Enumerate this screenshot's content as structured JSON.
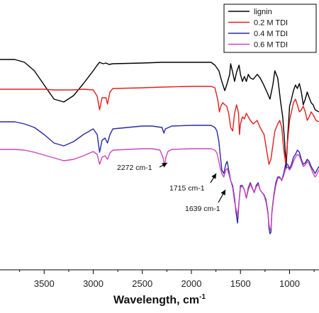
{
  "chart_data": {
    "type": "line",
    "xlabel": "Wavelength, cm",
    "xlabel_superscript": "-1",
    "x_reversed": true,
    "xlim": [
      3950,
      700
    ],
    "x_ticks": [
      3500,
      3000,
      2500,
      2000,
      1500,
      1000
    ],
    "y_axis_shown": false,
    "grid": false,
    "legend_position": "top-right",
    "series": [
      {
        "name": "lignin",
        "color": "#000000",
        "points": [
          [
            3950,
            84
          ],
          [
            3800,
            84
          ],
          [
            3700,
            88
          ],
          [
            3600,
            100
          ],
          [
            3500,
            120
          ],
          [
            3400,
            140
          ],
          [
            3300,
            144
          ],
          [
            3200,
            135
          ],
          [
            3100,
            118
          ],
          [
            3000,
            100
          ],
          [
            2960,
            92
          ],
          [
            2935,
            88
          ],
          [
            2900,
            90
          ],
          [
            2870,
            89
          ],
          [
            2840,
            91
          ],
          [
            2800,
            90
          ],
          [
            2500,
            89
          ],
          [
            2300,
            88
          ],
          [
            2000,
            88
          ],
          [
            1800,
            88
          ],
          [
            1760,
            92
          ],
          [
            1720,
            100
          ],
          [
            1690,
            115
          ],
          [
            1660,
            128
          ],
          [
            1640,
            120
          ],
          [
            1610,
            105
          ],
          [
            1600,
            90
          ],
          [
            1580,
            102
          ],
          [
            1560,
            115
          ],
          [
            1540,
            102
          ],
          [
            1515,
            92
          ],
          [
            1500,
            105
          ],
          [
            1480,
            115
          ],
          [
            1460,
            108
          ],
          [
            1440,
            115
          ],
          [
            1420,
            105
          ],
          [
            1400,
            110
          ],
          [
            1370,
            112
          ],
          [
            1330,
            105
          ],
          [
            1300,
            110
          ],
          [
            1270,
            118
          ],
          [
            1230,
            130
          ],
          [
            1200,
            140
          ],
          [
            1170,
            120
          ],
          [
            1150,
            100
          ],
          [
            1120,
            110
          ],
          [
            1090,
            145
          ],
          [
            1070,
            165
          ],
          [
            1050,
            200
          ],
          [
            1035,
            238
          ],
          [
            1020,
            195
          ],
          [
            1000,
            150
          ],
          [
            980,
            140
          ],
          [
            960,
            128
          ],
          [
            940,
            120
          ],
          [
            920,
            125
          ],
          [
            900,
            118
          ],
          [
            880,
            130
          ],
          [
            860,
            148
          ],
          [
            840,
            140
          ],
          [
            820,
            130
          ],
          [
            800,
            138
          ],
          [
            780,
            145
          ],
          [
            760,
            148
          ],
          [
            740,
            155
          ],
          [
            700,
            158
          ]
        ]
      },
      {
        "name": "0.2 M TDI",
        "color": "#e02020",
        "points": [
          [
            3950,
            126
          ],
          [
            3800,
            126
          ],
          [
            3700,
            126
          ],
          [
            3600,
            126
          ],
          [
            3500,
            126
          ],
          [
            3400,
            127
          ],
          [
            3300,
            127
          ],
          [
            3200,
            127
          ],
          [
            3100,
            126
          ],
          [
            3000,
            127
          ],
          [
            2960,
            136
          ],
          [
            2935,
            155
          ],
          [
            2910,
            138
          ],
          [
            2870,
            138
          ],
          [
            2855,
            147
          ],
          [
            2830,
            130
          ],
          [
            2800,
            125
          ],
          [
            2500,
            124
          ],
          [
            2300,
            123
          ],
          [
            2000,
            122
          ],
          [
            1800,
            122
          ],
          [
            1760,
            124
          ],
          [
            1730,
            142
          ],
          [
            1715,
            158
          ],
          [
            1700,
            150
          ],
          [
            1680,
            145
          ],
          [
            1660,
            148
          ],
          [
            1640,
            150
          ],
          [
            1620,
            160
          ],
          [
            1600,
            180
          ],
          [
            1580,
            185
          ],
          [
            1560,
            160
          ],
          [
            1540,
            148
          ],
          [
            1520,
            160
          ],
          [
            1510,
            190
          ],
          [
            1500,
            175
          ],
          [
            1480,
            165
          ],
          [
            1460,
            168
          ],
          [
            1440,
            160
          ],
          [
            1420,
            165
          ],
          [
            1400,
            170
          ],
          [
            1370,
            175
          ],
          [
            1330,
            170
          ],
          [
            1300,
            180
          ],
          [
            1260,
            190
          ],
          [
            1230,
            215
          ],
          [
            1210,
            232
          ],
          [
            1190,
            225
          ],
          [
            1170,
            205
          ],
          [
            1150,
            185
          ],
          [
            1120,
            175
          ],
          [
            1100,
            170
          ],
          [
            1080,
            180
          ],
          [
            1060,
            210
          ],
          [
            1040,
            230
          ],
          [
            1020,
            200
          ],
          [
            1000,
            170
          ],
          [
            980,
            158
          ],
          [
            960,
            145
          ],
          [
            940,
            140
          ],
          [
            920,
            148
          ],
          [
            900,
            158
          ],
          [
            880,
            155
          ],
          [
            860,
            150
          ],
          [
            840,
            158
          ],
          [
            820,
            170
          ],
          [
            800,
            165
          ],
          [
            780,
            158
          ],
          [
            760,
            162
          ],
          [
            730,
            170
          ],
          [
            700,
            172
          ]
        ]
      },
      {
        "name": "0.4 M TDI",
        "color": "#2a2aa0",
        "points": [
          [
            3950,
            172
          ],
          [
            3800,
            172
          ],
          [
            3700,
            175
          ],
          [
            3600,
            180
          ],
          [
            3500,
            190
          ],
          [
            3400,
            202
          ],
          [
            3300,
            206
          ],
          [
            3200,
            200
          ],
          [
            3100,
            190
          ],
          [
            3000,
            182
          ],
          [
            2960,
            190
          ],
          [
            2935,
            215
          ],
          [
            2910,
            198
          ],
          [
            2880,
            195
          ],
          [
            2855,
            202
          ],
          [
            2830,
            190
          ],
          [
            2800,
            182
          ],
          [
            2500,
            178
          ],
          [
            2400,
            178
          ],
          [
            2300,
            180
          ],
          [
            2280,
            188
          ],
          [
            2265,
            182
          ],
          [
            2200,
            178
          ],
          [
            2000,
            177
          ],
          [
            1800,
            177
          ],
          [
            1760,
            180
          ],
          [
            1740,
            185
          ],
          [
            1720,
            200
          ],
          [
            1705,
            220
          ],
          [
            1690,
            240
          ],
          [
            1670,
            245
          ],
          [
            1650,
            232
          ],
          [
            1635,
            228
          ],
          [
            1620,
            240
          ],
          [
            1600,
            255
          ],
          [
            1580,
            262
          ],
          [
            1560,
            280
          ],
          [
            1545,
            300
          ],
          [
            1530,
            315
          ],
          [
            1515,
            285
          ],
          [
            1500,
            262
          ],
          [
            1480,
            262
          ],
          [
            1460,
            268
          ],
          [
            1440,
            280
          ],
          [
            1420,
            265
          ],
          [
            1400,
            258
          ],
          [
            1380,
            265
          ],
          [
            1360,
            272
          ],
          [
            1340,
            262
          ],
          [
            1320,
            258
          ],
          [
            1300,
            268
          ],
          [
            1280,
            272
          ],
          [
            1260,
            275
          ],
          [
            1240,
            282
          ],
          [
            1220,
            300
          ],
          [
            1210,
            322
          ],
          [
            1200,
            330
          ],
          [
            1190,
            328
          ],
          [
            1180,
            300
          ],
          [
            1160,
            275
          ],
          [
            1140,
            258
          ],
          [
            1120,
            250
          ],
          [
            1100,
            250
          ],
          [
            1080,
            255
          ],
          [
            1060,
            245
          ],
          [
            1040,
            232
          ],
          [
            1020,
            232
          ],
          [
            1000,
            238
          ],
          [
            980,
            232
          ],
          [
            960,
            222
          ],
          [
            940,
            218
          ],
          [
            920,
            212
          ],
          [
            900,
            215
          ],
          [
            880,
            225
          ],
          [
            860,
            232
          ],
          [
            840,
            230
          ],
          [
            820,
            225
          ],
          [
            800,
            228
          ],
          [
            780,
            235
          ],
          [
            760,
            240
          ],
          [
            740,
            245
          ],
          [
            720,
            240
          ],
          [
            700,
            235
          ]
        ]
      },
      {
        "name": "0.6 M TDI",
        "color": "#cc44bb",
        "points": [
          [
            3950,
            211
          ],
          [
            3800,
            211
          ],
          [
            3700,
            212
          ],
          [
            3600,
            215
          ],
          [
            3500,
            219
          ],
          [
            3400,
            223
          ],
          [
            3300,
            227
          ],
          [
            3200,
            225
          ],
          [
            3100,
            220
          ],
          [
            3000,
            214
          ],
          [
            2960,
            218
          ],
          [
            2935,
            232
          ],
          [
            2910,
            222
          ],
          [
            2880,
            220
          ],
          [
            2855,
            225
          ],
          [
            2830,
            216
          ],
          [
            2800,
            212
          ],
          [
            2500,
            210
          ],
          [
            2400,
            210
          ],
          [
            2320,
            212
          ],
          [
            2290,
            222
          ],
          [
            2272,
            234
          ],
          [
            2260,
            222
          ],
          [
            2240,
            214
          ],
          [
            2200,
            211
          ],
          [
            2000,
            210
          ],
          [
            1800,
            210
          ],
          [
            1760,
            212
          ],
          [
            1740,
            216
          ],
          [
            1720,
            228
          ],
          [
            1705,
            238
          ],
          [
            1690,
            245
          ],
          [
            1670,
            250
          ],
          [
            1650,
            240
          ],
          [
            1635,
            238
          ],
          [
            1620,
            245
          ],
          [
            1600,
            255
          ],
          [
            1580,
            265
          ],
          [
            1560,
            285
          ],
          [
            1545,
            295
          ],
          [
            1530,
            305
          ],
          [
            1515,
            285
          ],
          [
            1500,
            265
          ],
          [
            1480,
            263
          ],
          [
            1460,
            268
          ],
          [
            1440,
            280
          ],
          [
            1420,
            268
          ],
          [
            1400,
            260
          ],
          [
            1380,
            266
          ],
          [
            1360,
            272
          ],
          [
            1340,
            264
          ],
          [
            1320,
            260
          ],
          [
            1300,
            268
          ],
          [
            1280,
            272
          ],
          [
            1260,
            276
          ],
          [
            1240,
            285
          ],
          [
            1220,
            302
          ],
          [
            1210,
            316
          ],
          [
            1200,
            325
          ],
          [
            1190,
            322
          ],
          [
            1180,
            302
          ],
          [
            1160,
            278
          ],
          [
            1140,
            262
          ],
          [
            1120,
            252
          ],
          [
            1100,
            251
          ],
          [
            1080,
            255
          ],
          [
            1060,
            248
          ],
          [
            1040,
            238
          ],
          [
            1020,
            236
          ],
          [
            1000,
            240
          ],
          [
            980,
            236
          ],
          [
            960,
            228
          ],
          [
            940,
            222
          ],
          [
            920,
            218
          ],
          [
            900,
            220
          ],
          [
            880,
            228
          ],
          [
            860,
            235
          ],
          [
            840,
            233
          ],
          [
            820,
            228
          ],
          [
            800,
            232
          ],
          [
            780,
            238
          ],
          [
            760,
            245
          ],
          [
            740,
            250
          ],
          [
            720,
            246
          ],
          [
            700,
            240
          ]
        ]
      }
    ],
    "annotations": [
      {
        "text": "2272 cm-1",
        "x": 2272
      },
      {
        "text": "1715 cm-1",
        "x": 1715
      },
      {
        "text": "1639 cm-1",
        "x": 1639
      }
    ]
  }
}
